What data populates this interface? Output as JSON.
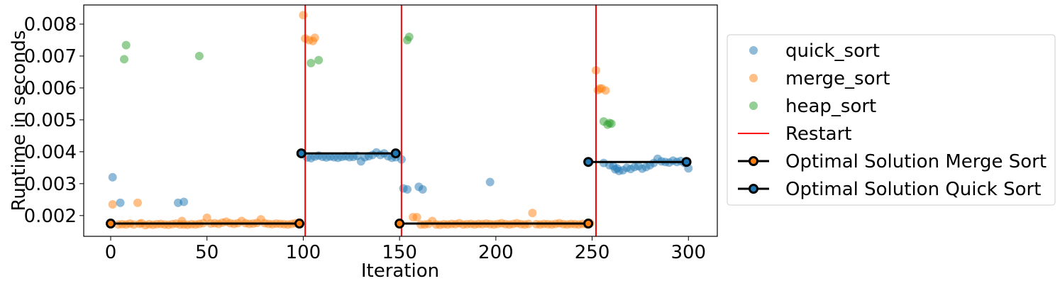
{
  "chart_data": {
    "type": "scatter",
    "xlabel": "Iteration",
    "ylabel": "Runtime in seconds",
    "xlim": [
      -14,
      315
    ],
    "ylim": [
      0.00135,
      0.0086
    ],
    "xticks": [
      0,
      50,
      100,
      150,
      200,
      250,
      300
    ],
    "yticks": [
      0.002,
      0.003,
      0.004,
      0.005,
      0.006,
      0.007,
      0.008
    ],
    "xtick_labels": [
      "0",
      "50",
      "100",
      "150",
      "200",
      "250",
      "300"
    ],
    "ytick_labels": [
      "0.002",
      "0.003",
      "0.004",
      "0.005",
      "0.006",
      "0.007",
      "0.008"
    ],
    "grid": false,
    "legend_position": "outside-right",
    "series": [
      {
        "name": "heap_sort",
        "color": "#2ca02c",
        "points": [
          [
            7,
            0.0069
          ],
          [
            8,
            0.00734
          ],
          [
            46,
            0.007
          ],
          [
            104,
            0.00678
          ],
          [
            108,
            0.00687
          ],
          [
            154,
            0.0075
          ],
          [
            155,
            0.0076
          ],
          [
            256,
            0.00495
          ],
          [
            258,
            0.00485
          ],
          [
            259,
            0.0049
          ],
          [
            260,
            0.00488
          ]
        ]
      },
      {
        "name": "merge_sort",
        "color": "#ff7f0e",
        "points": [
          [
            1,
            0.00235
          ],
          [
            4,
            0.00172
          ],
          [
            6,
            0.00173
          ],
          [
            8,
            0.00172
          ],
          [
            10,
            0.00175
          ],
          [
            12,
            0.00172
          ],
          [
            14,
            0.0024
          ],
          [
            15,
            0.00174
          ],
          [
            16,
            0.00176
          ],
          [
            18,
            0.0017
          ],
          [
            20,
            0.00173
          ],
          [
            22,
            0.00171
          ],
          [
            24,
            0.00173
          ],
          [
            26,
            0.00174
          ],
          [
            28,
            0.00172
          ],
          [
            30,
            0.00171
          ],
          [
            32,
            0.00173
          ],
          [
            34,
            0.00175
          ],
          [
            36,
            0.00172
          ],
          [
            37,
            0.00183
          ],
          [
            38,
            0.00172
          ],
          [
            40,
            0.00171
          ],
          [
            42,
            0.00173
          ],
          [
            44,
            0.00172
          ],
          [
            46,
            0.00174
          ],
          [
            48,
            0.00176
          ],
          [
            50,
            0.00193
          ],
          [
            52,
            0.00175
          ],
          [
            54,
            0.00176
          ],
          [
            56,
            0.00174
          ],
          [
            58,
            0.00178
          ],
          [
            60,
            0.00181
          ],
          [
            62,
            0.00176
          ],
          [
            64,
            0.00174
          ],
          [
            66,
            0.00176
          ],
          [
            68,
            0.00183
          ],
          [
            70,
            0.00176
          ],
          [
            72,
            0.00174
          ],
          [
            74,
            0.00175
          ],
          [
            76,
            0.00177
          ],
          [
            78,
            0.00188
          ],
          [
            80,
            0.00176
          ],
          [
            82,
            0.00174
          ],
          [
            84,
            0.00173
          ],
          [
            86,
            0.00175
          ],
          [
            88,
            0.00174
          ],
          [
            90,
            0.00173
          ],
          [
            92,
            0.00172
          ],
          [
            94,
            0.00174
          ],
          [
            96,
            0.00176
          ],
          [
            98,
            0.00178
          ],
          [
            100,
            0.00828
          ],
          [
            101,
            0.00755
          ],
          [
            103,
            0.0075
          ],
          [
            105,
            0.00747
          ],
          [
            106,
            0.00757
          ],
          [
            157,
            0.00195
          ],
          [
            159,
            0.00195
          ],
          [
            161,
            0.00172
          ],
          [
            163,
            0.00172
          ],
          [
            165,
            0.00174
          ],
          [
            167,
            0.00183
          ],
          [
            169,
            0.00172
          ],
          [
            171,
            0.00171
          ],
          [
            173,
            0.00173
          ],
          [
            175,
            0.00172
          ],
          [
            177,
            0.00174
          ],
          [
            179,
            0.00173
          ],
          [
            181,
            0.00176
          ],
          [
            183,
            0.00172
          ],
          [
            185,
            0.00173
          ],
          [
            187,
            0.00174
          ],
          [
            189,
            0.00172
          ],
          [
            191,
            0.00174
          ],
          [
            193,
            0.00173
          ],
          [
            195,
            0.00175
          ],
          [
            197,
            0.00173
          ],
          [
            199,
            0.00172
          ],
          [
            201,
            0.00174
          ],
          [
            203,
            0.00176
          ],
          [
            205,
            0.00173
          ],
          [
            207,
            0.00172
          ],
          [
            209,
            0.00174
          ],
          [
            211,
            0.00176
          ],
          [
            213,
            0.00173
          ],
          [
            215,
            0.00172
          ],
          [
            217,
            0.00174
          ],
          [
            219,
            0.00208
          ],
          [
            221,
            0.00173
          ],
          [
            223,
            0.00172
          ],
          [
            225,
            0.00174
          ],
          [
            227,
            0.00173
          ],
          [
            229,
            0.00172
          ],
          [
            231,
            0.00174
          ],
          [
            233,
            0.00176
          ],
          [
            235,
            0.00173
          ],
          [
            237,
            0.00172
          ],
          [
            239,
            0.00174
          ],
          [
            241,
            0.00173
          ],
          [
            243,
            0.00172
          ],
          [
            245,
            0.00174
          ],
          [
            247,
            0.00173
          ],
          [
            249,
            0.00176
          ],
          [
            252,
            0.00655
          ],
          [
            253,
            0.00593
          ],
          [
            254,
            0.00598
          ],
          [
            255,
            0.00598
          ],
          [
            257,
            0.00592
          ]
        ]
      },
      {
        "name": "quick_sort",
        "color": "#1f77b4",
        "points": [
          [
            1,
            0.0032
          ],
          [
            5,
            0.0024
          ],
          [
            35,
            0.0024
          ],
          [
            38,
            0.00243
          ],
          [
            102,
            0.00382
          ],
          [
            104,
            0.0038
          ],
          [
            106,
            0.00385
          ],
          [
            108,
            0.00388
          ],
          [
            110,
            0.00384
          ],
          [
            112,
            0.00382
          ],
          [
            114,
            0.00385
          ],
          [
            116,
            0.00383
          ],
          [
            118,
            0.00381
          ],
          [
            120,
            0.00384
          ],
          [
            122,
            0.00386
          ],
          [
            124,
            0.00383
          ],
          [
            126,
            0.00384
          ],
          [
            128,
            0.00387
          ],
          [
            130,
            0.0037
          ],
          [
            132,
            0.00383
          ],
          [
            134,
            0.00386
          ],
          [
            136,
            0.0039
          ],
          [
            138,
            0.00398
          ],
          [
            140,
            0.0039
          ],
          [
            142,
            0.00395
          ],
          [
            144,
            0.00386
          ],
          [
            146,
            0.00381
          ],
          [
            148,
            0.00383
          ],
          [
            151,
            0.00376
          ],
          [
            152,
            0.00285
          ],
          [
            154,
            0.00282
          ],
          [
            160,
            0.0029
          ],
          [
            162,
            0.00282
          ],
          [
            197,
            0.00305
          ],
          [
            262,
            0.00345
          ],
          [
            264,
            0.0034
          ],
          [
            266,
            0.00342
          ],
          [
            268,
            0.0035
          ],
          [
            270,
            0.00346
          ],
          [
            272,
            0.00352
          ],
          [
            274,
            0.00355
          ],
          [
            276,
            0.00347
          ],
          [
            278,
            0.00352
          ],
          [
            280,
            0.00358
          ],
          [
            282,
            0.00365
          ],
          [
            284,
            0.00378
          ],
          [
            286,
            0.0037
          ],
          [
            288,
            0.00368
          ],
          [
            290,
            0.00366
          ],
          [
            292,
            0.00372
          ],
          [
            294,
            0.00368
          ],
          [
            296,
            0.00371
          ],
          [
            298,
            0.00365
          ],
          [
            300,
            0.00348
          ],
          [
            256,
            0.00365
          ],
          [
            259,
            0.00358
          ],
          [
            261,
            0.00355
          ],
          [
            263,
            0.00348
          ]
        ]
      }
    ],
    "restarts": {
      "name": "Restart",
      "color": "#ff0000",
      "x": [
        101,
        151,
        252
      ]
    },
    "optimal_lines": [
      {
        "name": "Optimal Solution Merge Sort",
        "color": "#000000",
        "segments": [
          [
            [
              0,
              0.00175
            ],
            [
              98,
              0.00175
            ]
          ],
          [
            [
              150,
              0.00175
            ],
            [
              248,
              0.00175
            ]
          ]
        ]
      },
      {
        "name": "Optimal Solution Quick Sort",
        "color": "#000000",
        "segments": [
          [
            [
              99,
              0.00395
            ],
            [
              148,
              0.00395
            ]
          ],
          [
            [
              248,
              0.00368
            ],
            [
              299,
              0.00368
            ]
          ]
        ]
      }
    ],
    "legend_marker_colors": {
      "heap_sort": "#2ca02c",
      "merge_sort": "#ff7f0e",
      "quick_sort": "#1f77b4",
      "Restart": "#ff0000",
      "Optimal Solution Merge Sort": "#ff7f0e",
      "Optimal Solution Quick Sort": "#1f77b4"
    }
  }
}
